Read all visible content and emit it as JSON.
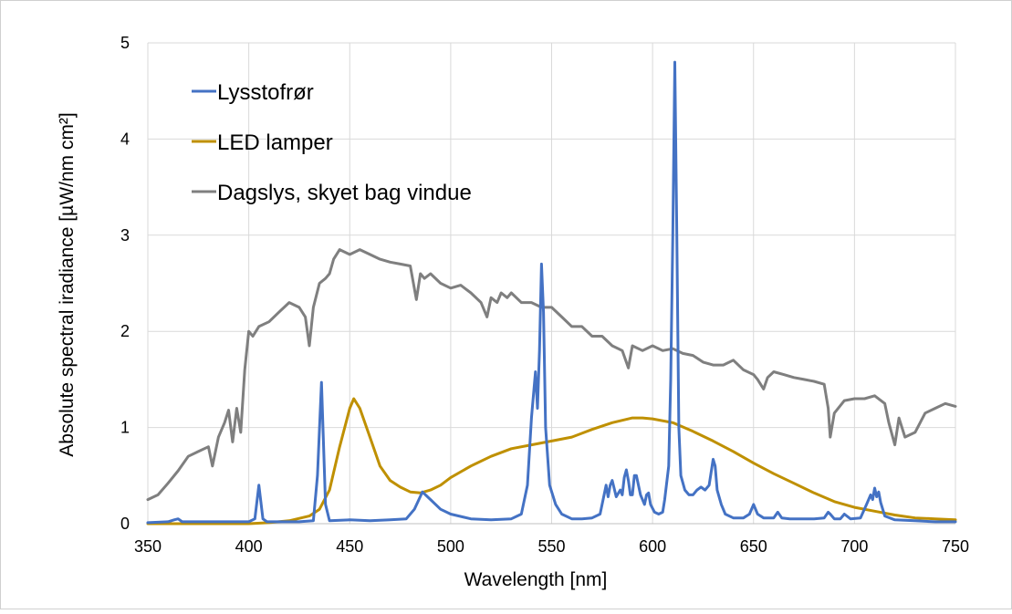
{
  "chart_data": {
    "type": "line",
    "title": "",
    "xlabel": "Wavelength [nm]",
    "ylabel": "Absolute spectral iradiance [µW/nm cm²]",
    "xlim": [
      350,
      750
    ],
    "ylim": [
      0,
      5
    ],
    "xticks": [
      350,
      400,
      450,
      500,
      550,
      600,
      650,
      700,
      750
    ],
    "yticks": [
      0,
      1,
      2,
      3,
      4,
      5
    ],
    "grid": true,
    "legend_position": "top-left",
    "series": [
      {
        "name": "Lysstofrør",
        "color": "#4472c4",
        "x": [
          350,
          360,
          363,
          365,
          367,
          375,
          385,
          395,
          400,
          403,
          405,
          407,
          409,
          415,
          425,
          432,
          434,
          436,
          438,
          440,
          450,
          460,
          470,
          478,
          482,
          486,
          490,
          495,
          500,
          510,
          520,
          530,
          535,
          538,
          540,
          542,
          543,
          544,
          545,
          546,
          547,
          549,
          552,
          555,
          560,
          565,
          570,
          574,
          576,
          577,
          578,
          579,
          580,
          582,
          584,
          585,
          586,
          587,
          588,
          589,
          590,
          591,
          592,
          594,
          596,
          597,
          598,
          599,
          601,
          603,
          605,
          606,
          608,
          609,
          610,
          611,
          612,
          613,
          614,
          616,
          618,
          620,
          622,
          624,
          626,
          628,
          630,
          631,
          632,
          634,
          636,
          640,
          645,
          648,
          650,
          652,
          655,
          660,
          662,
          664,
          668,
          675,
          680,
          685,
          687,
          688,
          690,
          693,
          695,
          698,
          703,
          706,
          708,
          709,
          710,
          711,
          712,
          713,
          715,
          720,
          730,
          740,
          750
        ],
        "y": [
          0.01,
          0.02,
          0.04,
          0.05,
          0.02,
          0.02,
          0.02,
          0.02,
          0.02,
          0.05,
          0.4,
          0.05,
          0.02,
          0.02,
          0.02,
          0.03,
          0.5,
          1.47,
          0.2,
          0.03,
          0.04,
          0.03,
          0.04,
          0.05,
          0.15,
          0.33,
          0.25,
          0.15,
          0.1,
          0.05,
          0.04,
          0.05,
          0.1,
          0.4,
          1.1,
          1.58,
          1.2,
          1.8,
          2.7,
          2.2,
          1.0,
          0.4,
          0.2,
          0.1,
          0.05,
          0.05,
          0.06,
          0.1,
          0.3,
          0.4,
          0.28,
          0.4,
          0.45,
          0.28,
          0.35,
          0.3,
          0.48,
          0.56,
          0.45,
          0.3,
          0.3,
          0.5,
          0.5,
          0.3,
          0.2,
          0.3,
          0.32,
          0.2,
          0.12,
          0.1,
          0.12,
          0.25,
          0.6,
          1.5,
          3.0,
          4.8,
          3.0,
          1.0,
          0.5,
          0.35,
          0.3,
          0.3,
          0.35,
          0.38,
          0.35,
          0.4,
          0.67,
          0.6,
          0.35,
          0.2,
          0.1,
          0.06,
          0.06,
          0.1,
          0.2,
          0.1,
          0.06,
          0.06,
          0.12,
          0.06,
          0.05,
          0.05,
          0.05,
          0.06,
          0.12,
          0.1,
          0.05,
          0.05,
          0.1,
          0.05,
          0.06,
          0.2,
          0.3,
          0.25,
          0.37,
          0.28,
          0.33,
          0.22,
          0.08,
          0.04,
          0.03,
          0.02,
          0.02
        ]
      },
      {
        "name": "LED lamper",
        "color": "#bf9000",
        "x": [
          350,
          380,
          400,
          410,
          420,
          430,
          435,
          440,
          445,
          450,
          452,
          455,
          460,
          465,
          470,
          475,
          480,
          485,
          490,
          495,
          500,
          510,
          520,
          530,
          540,
          550,
          560,
          570,
          580,
          590,
          595,
          600,
          610,
          620,
          630,
          640,
          650,
          660,
          670,
          680,
          690,
          700,
          710,
          720,
          730,
          740,
          750
        ],
        "y": [
          0.0,
          0.0,
          0.0,
          0.01,
          0.03,
          0.08,
          0.15,
          0.35,
          0.8,
          1.2,
          1.3,
          1.2,
          0.9,
          0.6,
          0.45,
          0.38,
          0.33,
          0.32,
          0.35,
          0.4,
          0.48,
          0.6,
          0.7,
          0.78,
          0.82,
          0.86,
          0.9,
          0.98,
          1.05,
          1.1,
          1.1,
          1.09,
          1.05,
          0.96,
          0.86,
          0.75,
          0.63,
          0.52,
          0.42,
          0.32,
          0.23,
          0.17,
          0.13,
          0.09,
          0.06,
          0.05,
          0.04
        ]
      },
      {
        "name": "Dagslys, skyet bag vindue",
        "color": "#7f7f7f",
        "x": [
          350,
          355,
          360,
          365,
          370,
          375,
          380,
          382,
          385,
          388,
          390,
          392,
          394,
          396,
          398,
          400,
          402,
          405,
          410,
          415,
          420,
          425,
          428,
          430,
          432,
          435,
          438,
          440,
          442,
          445,
          450,
          455,
          460,
          465,
          470,
          475,
          480,
          483,
          485,
          487,
          490,
          495,
          500,
          505,
          510,
          515,
          518,
          520,
          523,
          525,
          528,
          530,
          535,
          540,
          545,
          550,
          555,
          560,
          565,
          570,
          575,
          580,
          585,
          588,
          590,
          595,
          600,
          605,
          610,
          615,
          620,
          625,
          630,
          635,
          640,
          645,
          650,
          652,
          655,
          657,
          660,
          665,
          670,
          675,
          680,
          685,
          687,
          688,
          690,
          695,
          700,
          705,
          710,
          715,
          717,
          720,
          722,
          725,
          730,
          735,
          740,
          745,
          750
        ],
        "y": [
          0.25,
          0.3,
          0.42,
          0.55,
          0.7,
          0.75,
          0.8,
          0.6,
          0.9,
          1.05,
          1.18,
          0.85,
          1.2,
          0.95,
          1.6,
          2.0,
          1.95,
          2.05,
          2.1,
          2.2,
          2.3,
          2.25,
          2.15,
          1.85,
          2.25,
          2.5,
          2.55,
          2.6,
          2.75,
          2.85,
          2.8,
          2.85,
          2.8,
          2.75,
          2.72,
          2.7,
          2.68,
          2.33,
          2.6,
          2.55,
          2.6,
          2.5,
          2.45,
          2.48,
          2.4,
          2.3,
          2.15,
          2.35,
          2.3,
          2.4,
          2.35,
          2.4,
          2.3,
          2.3,
          2.25,
          2.25,
          2.15,
          2.05,
          2.05,
          1.95,
          1.95,
          1.85,
          1.8,
          1.62,
          1.85,
          1.8,
          1.85,
          1.8,
          1.82,
          1.77,
          1.75,
          1.68,
          1.65,
          1.65,
          1.7,
          1.6,
          1.55,
          1.5,
          1.4,
          1.52,
          1.58,
          1.55,
          1.52,
          1.5,
          1.48,
          1.45,
          1.2,
          0.9,
          1.15,
          1.28,
          1.3,
          1.3,
          1.33,
          1.25,
          1.05,
          0.82,
          1.1,
          0.9,
          0.95,
          1.15,
          1.2,
          1.25,
          1.22
        ]
      }
    ]
  }
}
